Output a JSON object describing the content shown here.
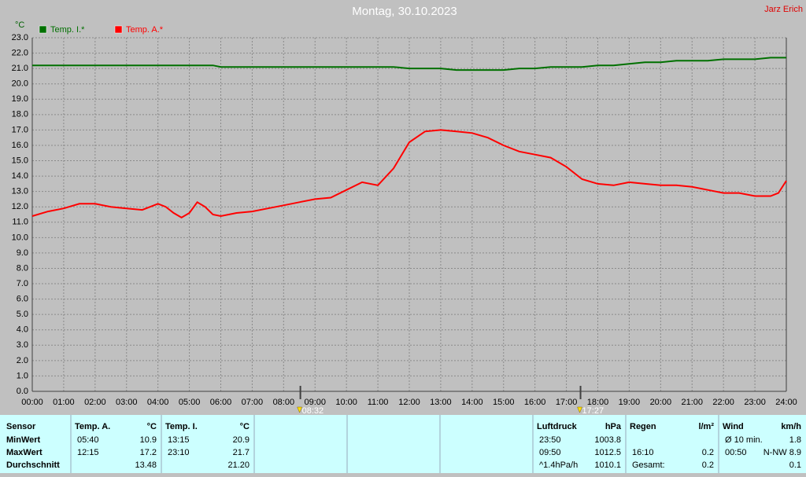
{
  "chart_data": {
    "type": "line",
    "title": "Montag, 30.10.2023",
    "author": "Jarz Erich",
    "y_label": "°C",
    "x": [
      0,
      0.5,
      1,
      1.5,
      2,
      2.5,
      3,
      3.5,
      4,
      4.25,
      4.5,
      4.75,
      5,
      5.25,
      5.5,
      5.75,
      6,
      6.5,
      7,
      7.5,
      8,
      8.5,
      9,
      9.5,
      10,
      10.5,
      11,
      11.5,
      12,
      12.5,
      13,
      13.5,
      14,
      14.5,
      15,
      15.5,
      16,
      16.5,
      17,
      17.5,
      18,
      18.5,
      19,
      19.5,
      20,
      20.5,
      21,
      21.5,
      22,
      22.5,
      23,
      23.5,
      23.75,
      24
    ],
    "series": [
      {
        "name": "Temp. I.*",
        "color": "#007000",
        "values": [
          21.2,
          21.2,
          21.2,
          21.2,
          21.2,
          21.2,
          21.2,
          21.2,
          21.2,
          21.2,
          21.2,
          21.2,
          21.2,
          21.2,
          21.2,
          21.2,
          21.1,
          21.1,
          21.1,
          21.1,
          21.1,
          21.1,
          21.1,
          21.1,
          21.1,
          21.1,
          21.1,
          21.1,
          21.0,
          21.0,
          21.0,
          20.9,
          20.9,
          20.9,
          20.9,
          21.0,
          21.0,
          21.1,
          21.1,
          21.1,
          21.2,
          21.2,
          21.3,
          21.4,
          21.4,
          21.5,
          21.5,
          21.5,
          21.6,
          21.6,
          21.6,
          21.7,
          21.7,
          21.7
        ]
      },
      {
        "name": "Temp. A.*",
        "color": "#ff0000",
        "values": [
          11.4,
          11.7,
          11.9,
          12.2,
          12.2,
          12.0,
          11.9,
          11.8,
          12.2,
          12.0,
          11.6,
          11.3,
          11.6,
          12.3,
          12.0,
          11.5,
          11.4,
          11.6,
          11.7,
          11.9,
          12.1,
          12.3,
          12.5,
          12.6,
          13.1,
          13.6,
          13.4,
          14.5,
          16.2,
          16.9,
          17.0,
          16.9,
          16.8,
          16.5,
          16.0,
          15.6,
          15.4,
          15.2,
          14.6,
          13.8,
          13.5,
          13.4,
          13.6,
          13.5,
          13.4,
          13.4,
          13.3,
          13.1,
          12.9,
          12.9,
          12.7,
          12.7,
          12.9,
          13.7
        ]
      }
    ],
    "xlim": [
      0,
      24
    ],
    "xticks": [
      {
        "value": 0,
        "label": "00:00"
      },
      {
        "value": 1,
        "label": "01:00"
      },
      {
        "value": 2,
        "label": "02:00"
      },
      {
        "value": 3,
        "label": "03:00"
      },
      {
        "value": 4,
        "label": "04:00"
      },
      {
        "value": 5,
        "label": "05:00"
      },
      {
        "value": 6,
        "label": "06:00"
      },
      {
        "value": 7,
        "label": "07:00"
      },
      {
        "value": 8,
        "label": "08:00"
      },
      {
        "value": 9,
        "label": "09:00"
      },
      {
        "value": 10,
        "label": "10:00"
      },
      {
        "value": 11,
        "label": "11:00"
      },
      {
        "value": 12,
        "label": "12:00"
      },
      {
        "value": 13,
        "label": "13:00"
      },
      {
        "value": 14,
        "label": "14:00"
      },
      {
        "value": 15,
        "label": "15:00"
      },
      {
        "value": 16,
        "label": "16:00"
      },
      {
        "value": 17,
        "label": "17:00"
      },
      {
        "value": 18,
        "label": "18:00"
      },
      {
        "value": 19,
        "label": "19:00"
      },
      {
        "value": 20,
        "label": "20:00"
      },
      {
        "value": 21,
        "label": "21:00"
      },
      {
        "value": 22,
        "label": "22:00"
      },
      {
        "value": 23,
        "label": "23:00"
      },
      {
        "value": 24,
        "label": "24:00"
      }
    ],
    "ylim": [
      0,
      23
    ],
    "yticks": [
      {
        "value": 0,
        "label": "0.0"
      },
      {
        "value": 1,
        "label": "1.0"
      },
      {
        "value": 2,
        "label": "2.0"
      },
      {
        "value": 3,
        "label": "3.0"
      },
      {
        "value": 4,
        "label": "4.0"
      },
      {
        "value": 5,
        "label": "5.0"
      },
      {
        "value": 6,
        "label": "6.0"
      },
      {
        "value": 7,
        "label": "7.0"
      },
      {
        "value": 8,
        "label": "8.0"
      },
      {
        "value": 9,
        "label": "9.0"
      },
      {
        "value": 10,
        "label": "10.0"
      },
      {
        "value": 11,
        "label": "11.0"
      },
      {
        "value": 12,
        "label": "12.0"
      },
      {
        "value": 13,
        "label": "13.0"
      },
      {
        "value": 14,
        "label": "14.0"
      },
      {
        "value": 15,
        "label": "15.0"
      },
      {
        "value": 16,
        "label": "16.0"
      },
      {
        "value": 17,
        "label": "17.0"
      },
      {
        "value": 18,
        "label": "18.0"
      },
      {
        "value": 19,
        "label": "19.0"
      },
      {
        "value": 20,
        "label": "20.0"
      },
      {
        "value": 21,
        "label": "21.0"
      },
      {
        "value": 22,
        "label": "22.0"
      },
      {
        "value": 23,
        "label": "23.0"
      }
    ],
    "grid": true,
    "sun_markers": [
      {
        "x": 8.5333,
        "label": "08:32"
      },
      {
        "x": 17.45,
        "label": "17:27"
      }
    ]
  },
  "stats": {
    "row_labels": [
      "Sensor",
      "MinWert",
      "MaxWert",
      "Durchschnitt"
    ],
    "blocks": [
      {
        "header": [
          "Temp. A.",
          "°C"
        ],
        "rows": [
          [
            "05:40",
            "10.9"
          ],
          [
            "12:15",
            "17.2"
          ],
          [
            null,
            "13.48"
          ]
        ]
      },
      {
        "header": [
          "Temp. I.",
          "°C"
        ],
        "rows": [
          [
            "13:15",
            "20.9"
          ],
          [
            "23:10",
            "21.7"
          ],
          [
            null,
            "21.20"
          ]
        ]
      },
      {
        "header": [
          "Luftdruck",
          "hPa"
        ],
        "rows": [
          [
            "23:50",
            "1003.8"
          ],
          [
            "09:50",
            "1012.5"
          ],
          [
            "^1.4hPa/h",
            "1010.1"
          ]
        ]
      },
      {
        "header": [
          "Regen",
          "l/m²"
        ],
        "rows": [
          [
            null,
            null
          ],
          [
            "16:10",
            "0.2"
          ],
          [
            "Gesamt:",
            "0.2"
          ]
        ]
      },
      {
        "header": [
          "Wind",
          "km/h"
        ],
        "rows": [
          [
            "Ø 10 min.",
            "1.8"
          ],
          [
            "00:50",
            "N-NW 8.9"
          ],
          [
            null,
            "0.1"
          ]
        ]
      }
    ]
  }
}
